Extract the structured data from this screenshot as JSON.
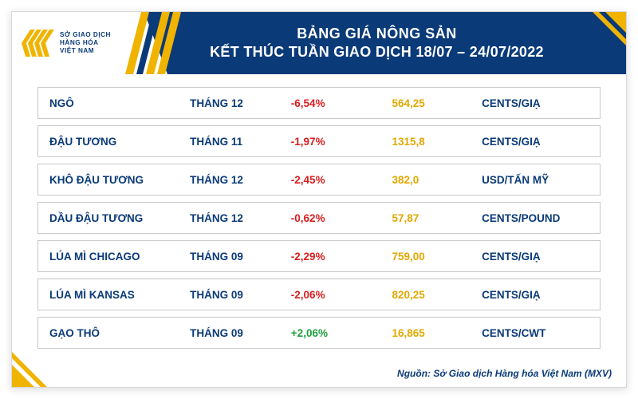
{
  "logo": {
    "line1": "SỞ GIAO DỊCH",
    "line2": "HÀNG HÓA",
    "line3": "VIỆT NAM"
  },
  "title": {
    "line1": "BẢNG GIÁ NÔNG SẢN",
    "line2": "KẾT THÚC TUẦN GIAO DỊCH 18/07 – 24/07/2022"
  },
  "colors": {
    "header_bg": "#0a3a78",
    "accent": "#f0b400",
    "neg": "#d81e1e",
    "pos": "#1e9e3c",
    "price": "#e0a800",
    "border": "#c9c9c9"
  },
  "rows": [
    {
      "name": "NGÔ",
      "month": "THÁNG 12",
      "change": "-6,54%",
      "dir": "neg",
      "price": "564,25",
      "unit": "CENTS/GIẠ"
    },
    {
      "name": "ĐẬU TƯƠNG",
      "month": "THÁNG 11",
      "change": "-1,97%",
      "dir": "neg",
      "price": "1315,8",
      "unit": "CENTS/GIẠ"
    },
    {
      "name": "KHÔ ĐẬU TƯƠNG",
      "month": "THÁNG 12",
      "change": "-2,45%",
      "dir": "neg",
      "price": "382,0",
      "unit": "USD/TẤN MỸ"
    },
    {
      "name": "DẦU ĐẬU TƯƠNG",
      "month": "THÁNG 12",
      "change": "-0,62%",
      "dir": "neg",
      "price": "57,87",
      "unit": "CENTS/POUND"
    },
    {
      "name": "LÚA MÌ CHICAGO",
      "month": "THÁNG 09",
      "change": "-2,29%",
      "dir": "neg",
      "price": "759,00",
      "unit": "CENTS/GIẠ"
    },
    {
      "name": "LÚA MÌ KANSAS",
      "month": "THÁNG 09",
      "change": "-2,06%",
      "dir": "neg",
      "price": "820,25",
      "unit": "CENTS/GIẠ"
    },
    {
      "name": "GẠO THÔ",
      "month": "THÁNG 09",
      "change": "+2,06%",
      "dir": "pos",
      "price": "16,865",
      "unit": "CENTS/CWT"
    }
  ],
  "source": "Nguồn: Sở Giao dịch Hàng hóa Việt Nam (MXV)"
}
